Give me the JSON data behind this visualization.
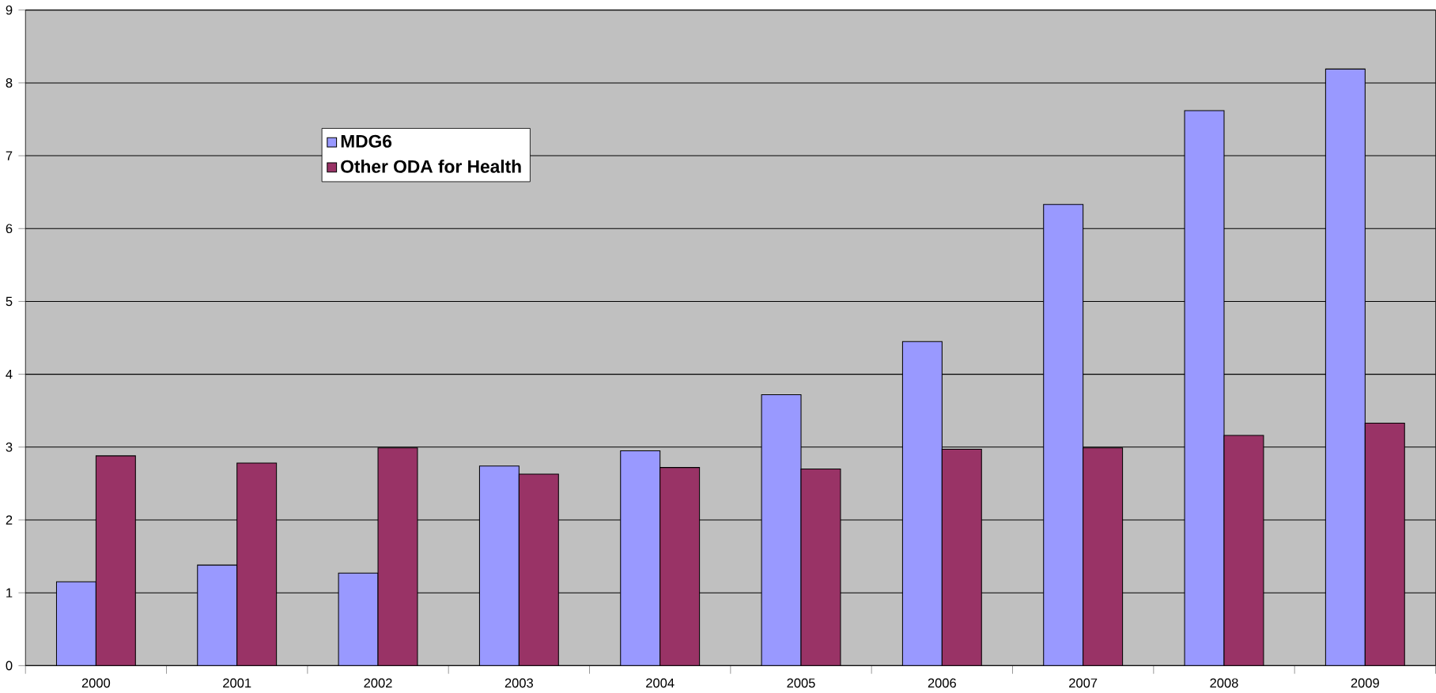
{
  "chart_data": {
    "type": "bar",
    "categories": [
      "2000",
      "2001",
      "2002",
      "2003",
      "2004",
      "2005",
      "2006",
      "2007",
      "2008",
      "2009"
    ],
    "series": [
      {
        "name": "MDG6",
        "color": "#9999ff",
        "values": [
          1.15,
          1.38,
          1.27,
          2.74,
          2.95,
          3.72,
          4.45,
          6.33,
          7.62,
          8.19
        ]
      },
      {
        "name": "Other ODA for Health",
        "color": "#993366",
        "values": [
          2.88,
          2.78,
          2.99,
          2.63,
          2.72,
          2.7,
          2.97,
          2.99,
          3.16,
          3.33
        ]
      }
    ],
    "ylim": [
      0,
      9
    ],
    "yticks": [
      0,
      1,
      2,
      3,
      4,
      5,
      6,
      7,
      8,
      9
    ],
    "grid": "y",
    "legend": "top left"
  }
}
